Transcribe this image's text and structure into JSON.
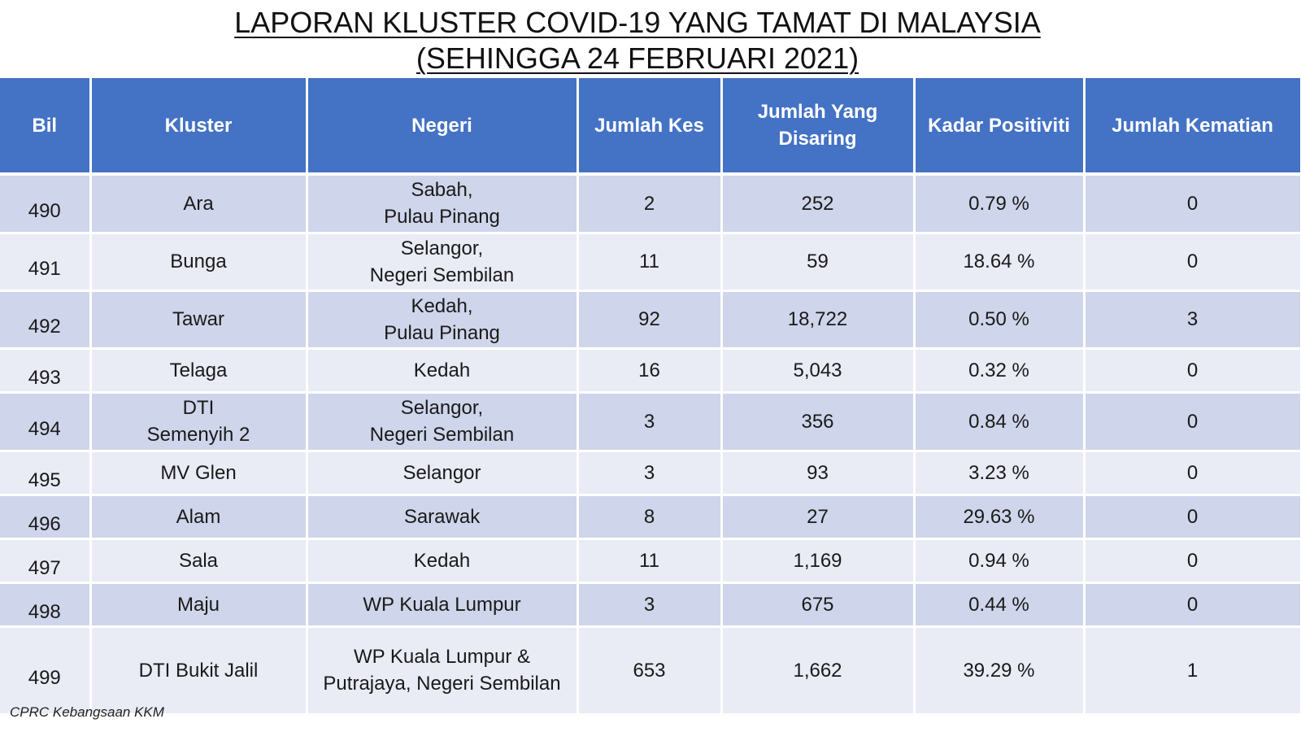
{
  "title": {
    "line1": "LAPORAN KLUSTER COVID-19 YANG TAMAT DI MALAYSIA",
    "line2": "(SEHINGGA 24 FEBRUARI 2021)"
  },
  "table": {
    "headers": {
      "bil": "Bil",
      "kluster": "Kluster",
      "negeri": "Negeri",
      "jumlah_kes": "Jumlah Kes",
      "jumlah_disaring_1": "Jumlah Yang",
      "jumlah_disaring_2": "Disaring",
      "kadar_positiviti": "Kadar Positiviti",
      "jumlah_kematian": "Jumlah Kematian"
    },
    "rows": [
      {
        "bil": "490",
        "kluster": [
          "Ara"
        ],
        "negeri": [
          "Sabah,",
          "Pulau Pinang"
        ],
        "kes": "2",
        "disaring": "252",
        "positiviti": "0.79 %",
        "kematian": "0"
      },
      {
        "bil": "491",
        "kluster": [
          "Bunga"
        ],
        "negeri": [
          "Selangor,",
          "Negeri Sembilan"
        ],
        "kes": "11",
        "disaring": "59",
        "positiviti": "18.64 %",
        "kematian": "0"
      },
      {
        "bil": "492",
        "kluster": [
          "Tawar"
        ],
        "negeri": [
          "Kedah,",
          "Pulau Pinang"
        ],
        "kes": "92",
        "disaring": "18,722",
        "positiviti": "0.50 %",
        "kematian": "3"
      },
      {
        "bil": "493",
        "kluster": [
          "Telaga"
        ],
        "negeri": [
          "Kedah"
        ],
        "kes": "16",
        "disaring": "5,043",
        "positiviti": "0.32 %",
        "kematian": "0"
      },
      {
        "bil": "494",
        "kluster": [
          "DTI",
          "Semenyih 2"
        ],
        "negeri": [
          "Selangor,",
          "Negeri Sembilan"
        ],
        "kes": "3",
        "disaring": "356",
        "positiviti": "0.84 %",
        "kematian": "0"
      },
      {
        "bil": "495",
        "kluster": [
          "MV Glen"
        ],
        "negeri": [
          "Selangor"
        ],
        "kes": "3",
        "disaring": "93",
        "positiviti": "3.23 %",
        "kematian": "0"
      },
      {
        "bil": "496",
        "kluster": [
          "Alam"
        ],
        "negeri": [
          "Sarawak"
        ],
        "kes": "8",
        "disaring": "27",
        "positiviti": "29.63 %",
        "kematian": "0"
      },
      {
        "bil": "497",
        "kluster": [
          "Sala"
        ],
        "negeri": [
          "Kedah"
        ],
        "kes": "11",
        "disaring": "1,169",
        "positiviti": "0.94 %",
        "kematian": "0"
      },
      {
        "bil": "498",
        "kluster": [
          "Maju"
        ],
        "negeri": [
          "WP Kuala Lumpur"
        ],
        "kes": "3",
        "disaring": "675",
        "positiviti": "0.44 %",
        "kematian": "0"
      },
      {
        "bil": "499",
        "kluster": [
          "DTI Bukit Jalil"
        ],
        "negeri": [
          "WP Kuala Lumpur &",
          "Putrajaya, Negeri Sembilan"
        ],
        "kes": "653",
        "disaring": "1,662",
        "positiviti": "39.29 %",
        "kematian": "1"
      }
    ]
  },
  "footer": "CPRC Kebangsaan KKM",
  "colors": {
    "header_bg": "#4472c4",
    "row_odd": "#cfd5ea",
    "row_even": "#e9ebf5"
  }
}
